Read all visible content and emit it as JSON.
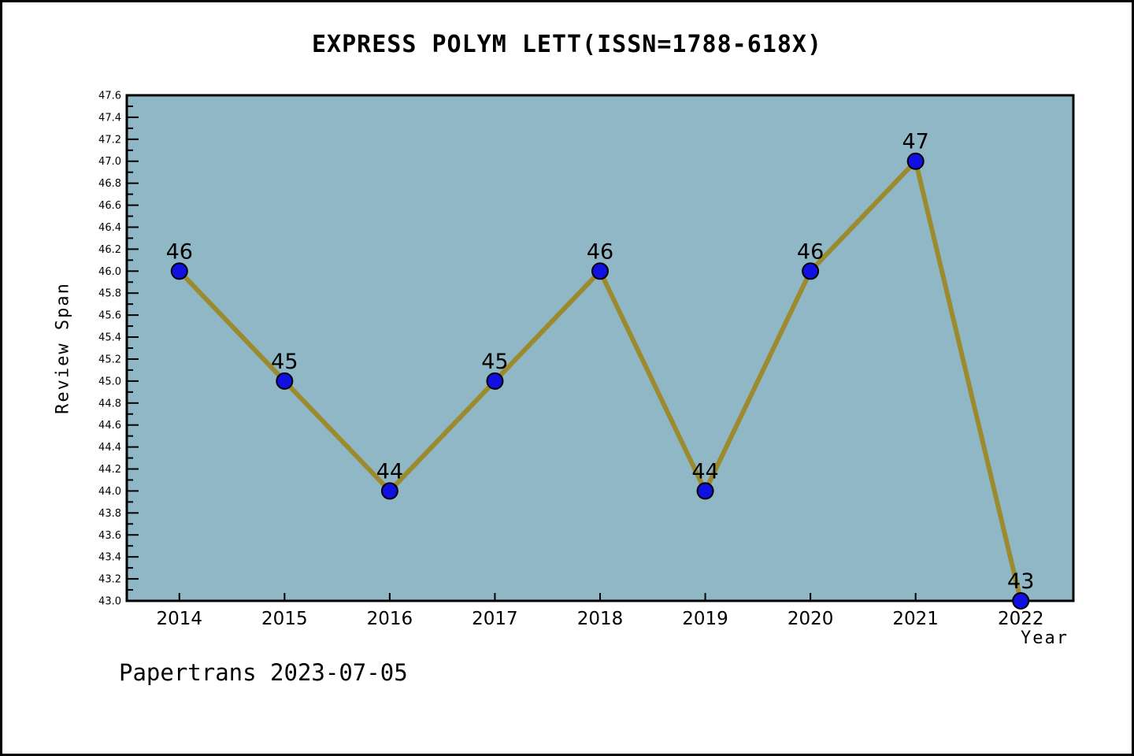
{
  "footer": {
    "text": "Papertrans 2023-07-05"
  },
  "chart_data": {
    "type": "line",
    "title": "EXPRESS POLYM LETT(ISSN=1788-618X)",
    "xlabel": "Year",
    "ylabel": "Review Span",
    "categories": [
      "2014",
      "2015",
      "2016",
      "2017",
      "2018",
      "2019",
      "2020",
      "2021",
      "2022"
    ],
    "values": [
      46,
      45,
      44,
      45,
      46,
      44,
      46,
      47,
      43
    ],
    "ylim": [
      43.0,
      47.6
    ],
    "ytick_step": 0.2,
    "yminor_step": 0.1,
    "grid": false,
    "legend_position": "none",
    "colors": {
      "plot_background": "#8fb7c6",
      "line": "#9b8b2e",
      "marker_fill": "#1010e0",
      "marker_edge": "#000000",
      "axis": "#000000",
      "text": "#000000"
    }
  }
}
